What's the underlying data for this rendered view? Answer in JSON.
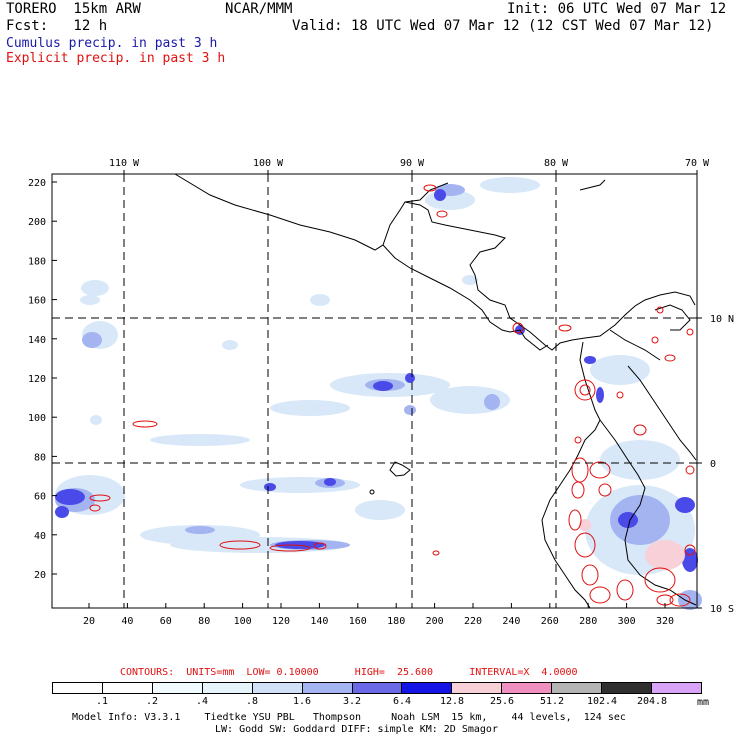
{
  "header": {
    "model": "TORERO  15km ARW",
    "org": "NCAR/MMM",
    "init": "Init: 06 UTC Wed 07 Mar 12",
    "fcst": "Fcst:   12 h",
    "valid": "Valid: 18 UTC Wed 07 Mar 12 (12 CST Wed 07 Mar 12)",
    "field1": "Cumulus precip. in past 3 h",
    "field2": "Explicit precip. in past 3 h",
    "field1_color": "#1a1aa8",
    "field2_color": "#e01010"
  },
  "map": {
    "top_labels": [
      "110 W",
      "100 W",
      "90 W",
      "80 W",
      "70 W"
    ],
    "right_labels": [
      "10 N",
      "0",
      "10 S"
    ],
    "left_ticks": [
      "220",
      "200",
      "180",
      "160",
      "140",
      "120",
      "100",
      "80",
      "60",
      "40",
      "20"
    ],
    "bottom_ticks": [
      "20",
      "40",
      "60",
      "80",
      "100",
      "120",
      "140",
      "160",
      "180",
      "200",
      "220",
      "240",
      "260",
      "280",
      "300",
      "320"
    ]
  },
  "contours": {
    "text": "CONTOURS:  UNITS=mm  LOW= 0.10000      HIGH=  25.600      INTERVAL=X  4.0000",
    "color": "#e01010"
  },
  "colorbar": {
    "labels": [
      ".1",
      ".2",
      ".4",
      ".8",
      "1.6",
      "3.2",
      "6.4",
      "12.8",
      "25.6",
      "51.2",
      "102.4",
      "204.8"
    ],
    "unit": "mm",
    "colors": [
      "#ffffff",
      "#ffffff",
      "#f2fbff",
      "#e6f4fc",
      "#cfe0f7",
      "#a4b4f0",
      "#6a6ae8",
      "#1414e8",
      "#f8d0d8",
      "#f090c0",
      "#b4b4b4",
      "#303030",
      "#d8a4f8"
    ]
  },
  "footer": {
    "line1": "Model Info: V3.3.1    Tiedtke YSU PBL   Thompson     Noah LSM  15 km,    44 levels,  124 sec",
    "line2": "LW: Godd SW: Goddard DIFF: simple KM: 2D Smagor"
  }
}
